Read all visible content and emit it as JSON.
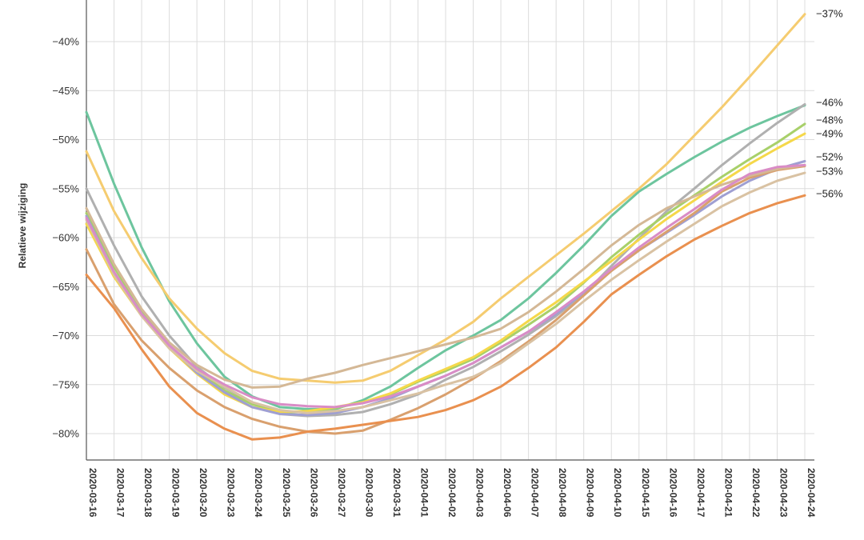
{
  "chart_data": {
    "type": "line",
    "ylabel": "Relatieve wijziging",
    "x": [
      "2020-03-16",
      "2020-03-17",
      "2020-03-18",
      "2020-03-19",
      "2020-03-20",
      "2020-03-23",
      "2020-03-24",
      "2020-03-25",
      "2020-03-26",
      "2020-03-27",
      "2020-03-30",
      "2020-03-31",
      "2020-04-01",
      "2020-04-02",
      "2020-04-03",
      "2020-04-06",
      "2020-04-07",
      "2020-04-08",
      "2020-04-09",
      "2020-04-10",
      "2020-04-15",
      "2020-04-16",
      "2020-04-17",
      "2020-04-21",
      "2020-04-22",
      "2020-04-23",
      "2020-04-24"
    ],
    "y_ticks": [
      "-40%",
      "-45%",
      "-50%",
      "-55%",
      "-60%",
      "-65%",
      "-70%",
      "-75%",
      "-80%"
    ],
    "y_tick_values": [
      -40,
      -45,
      -50,
      -55,
      -60,
      -65,
      -70,
      -75,
      -80
    ],
    "ylim": [
      -83.5,
      -36
    ],
    "grid": true,
    "end_labels": [
      "−37%",
      "−46%",
      "−48%",
      "−49%",
      "−52%",
      "−53%",
      "−56%"
    ],
    "end_label_values": [
      -37,
      -46,
      -48,
      -49,
      -52,
      -53,
      -56
    ],
    "series": [
      {
        "color": "#6dc59e",
        "values": [
          -47.2,
          -54.5,
          -61,
          -66.5,
          -70.8,
          -74.2,
          -76.2,
          -77.3,
          -77.5,
          -77.5,
          -76.6,
          -75.2,
          -73.3,
          -71.5,
          -70,
          -68.4,
          -66.2,
          -63.6,
          -60.8,
          -57.8,
          -55.3,
          -53.5,
          -51.8,
          -50.2,
          -48.8,
          -47.6,
          -46.5
        ]
      },
      {
        "color": "#f5cc70",
        "values": [
          -51.2,
          -57.3,
          -62.1,
          -66.2,
          -69.3,
          -71.8,
          -73.6,
          -74.4,
          -74.6,
          -74.8,
          -74.6,
          -73.6,
          -72,
          -70.4,
          -68.6,
          -66.2,
          -64,
          -61.8,
          -59.6,
          -57.3,
          -55,
          -52.5,
          -49.6,
          -46.7,
          -43.6,
          -40.4,
          -37.2
        ]
      },
      {
        "color": "#b0b0b0",
        "values": [
          -55,
          -60.8,
          -66,
          -70,
          -73.2,
          -75.3,
          -76.8,
          -78,
          -78.2,
          -78.1,
          -77.8,
          -77,
          -76,
          -74.5,
          -73.2,
          -71.6,
          -69.9,
          -68,
          -65.8,
          -62.9,
          -60.1,
          -57.3,
          -55,
          -52.6,
          -50.4,
          -48.3,
          -46.4
        ]
      },
      {
        "color": "#a8d06a",
        "values": [
          -57.5,
          -63,
          -67.5,
          -71,
          -73.6,
          -75.6,
          -77,
          -77.8,
          -77.8,
          -77.4,
          -76.8,
          -76,
          -74.7,
          -73.6,
          -72.4,
          -70.7,
          -68.9,
          -67,
          -64.6,
          -62,
          -59.7,
          -57.6,
          -55.7,
          -53.8,
          -52,
          -50.3,
          -48.4
        ]
      },
      {
        "color": "#f5d84a",
        "values": [
          -58.6,
          -64,
          -68,
          -71.3,
          -73.9,
          -76,
          -77.3,
          -77.8,
          -77.7,
          -77.3,
          -76.8,
          -75.9,
          -74.6,
          -73.4,
          -72.2,
          -70.5,
          -68.5,
          -66.6,
          -64.5,
          -62.4,
          -60.2,
          -58.1,
          -56.2,
          -54.3,
          -52.5,
          -50.9,
          -49.4
        ]
      },
      {
        "color": "#9f9fd2",
        "values": [
          -57.8,
          -63.5,
          -67.8,
          -71.1,
          -73.8,
          -75.8,
          -77.3,
          -78,
          -78.1,
          -77.9,
          -77.3,
          -76.4,
          -75.2,
          -74.1,
          -72.8,
          -71.2,
          -69.6,
          -67.8,
          -65.6,
          -63.4,
          -61.3,
          -59.5,
          -57.7,
          -55.8,
          -54.2,
          -53,
          -52.2
        ]
      },
      {
        "color": "#d9a06e",
        "values": [
          -61.2,
          -66.8,
          -70.5,
          -73.3,
          -75.6,
          -77.3,
          -78.5,
          -79.3,
          -79.8,
          -80,
          -79.7,
          -78.6,
          -77.4,
          -76,
          -74.4,
          -72.6,
          -70.6,
          -68.4,
          -65.9,
          -63.4,
          -61.3,
          -59.4,
          -57.5,
          -55.3,
          -53.9,
          -53.1,
          -52.7
        ]
      },
      {
        "color": "#d9c2a3",
        "values": [
          -58.2,
          -63.8,
          -68,
          -71.3,
          -73.6,
          -75.2,
          -76.8,
          -77.6,
          -77.9,
          -77.7,
          -77.3,
          -76.6,
          -75.9,
          -75,
          -74.2,
          -72.8,
          -70.8,
          -68.8,
          -66.5,
          -64.3,
          -62.3,
          -60.4,
          -58.6,
          -56.8,
          -55.4,
          -54.2,
          -53.4
        ]
      },
      {
        "color": "#d4b896",
        "values": [
          -57,
          -62.7,
          -67.3,
          -70.7,
          -73,
          -74.5,
          -75.3,
          -75.2,
          -74.4,
          -73.8,
          -73,
          -72.3,
          -71.6,
          -70.9,
          -70.2,
          -69.3,
          -67.6,
          -65.5,
          -63.2,
          -60.8,
          -58.7,
          -57,
          -55.8,
          -54.6,
          -53.7,
          -53,
          -52.6
        ]
      },
      {
        "color": "#e9904f",
        "values": [
          -63.8,
          -67.2,
          -71.4,
          -75.2,
          -77.9,
          -79.5,
          -80.6,
          -80.4,
          -79.8,
          -79.5,
          -79.1,
          -78.7,
          -78.3,
          -77.6,
          -76.6,
          -75.2,
          -73.3,
          -71.2,
          -68.6,
          -65.8,
          -63.8,
          -61.9,
          -60.2,
          -58.8,
          -57.5,
          -56.5,
          -55.7
        ]
      },
      {
        "color": "#d98cc6",
        "values": [
          -58,
          -63.5,
          -67.8,
          -71,
          -73.4,
          -75,
          -76.3,
          -77,
          -77.2,
          -77.3,
          -76.9,
          -76.2,
          -75.2,
          -74.1,
          -72.8,
          -71.2,
          -69.6,
          -67.6,
          -65.5,
          -63.2,
          -61,
          -59,
          -57.1,
          -55.1,
          -53.5,
          -52.8,
          -52.6
        ]
      }
    ]
  }
}
